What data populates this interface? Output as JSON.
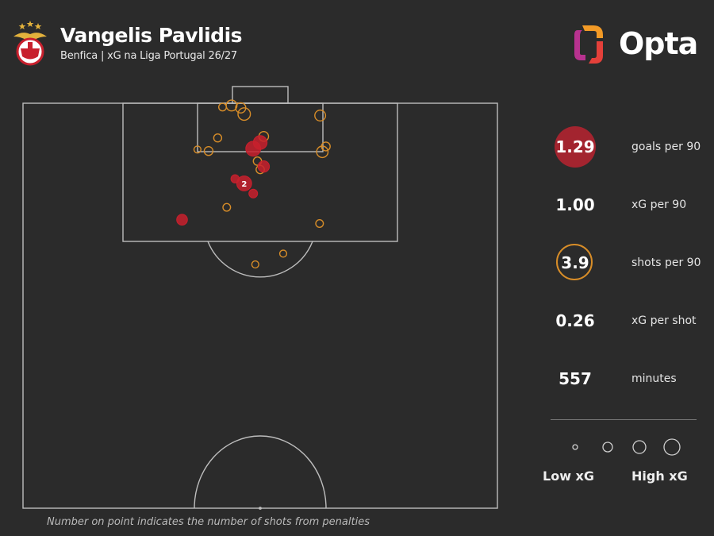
{
  "header": {
    "player_name": "Vangelis Pavlidis",
    "subtitle": "Benfica | xG na Liga Portugal 26/27",
    "brand": "Opta",
    "crest_icon": "benfica-eagle-crest-icon"
  },
  "colors": {
    "background": "#2b2b2b",
    "pitch_lines": "#bdbdbd",
    "goal_red": "#c8202d",
    "miss_orange": "#d88d28",
    "opta_orange": "#f29a26",
    "opta_magenta": "#b7328f",
    "opta_red": "#e4403a"
  },
  "stats": [
    {
      "value": "1.29",
      "label": "goals per 90",
      "badge": "goals"
    },
    {
      "value": "1.00",
      "label": "xG per 90",
      "badge": "none"
    },
    {
      "value": "3.9",
      "label": "shots per 90",
      "badge": "shots"
    },
    {
      "value": "0.26",
      "label": "xG per shot",
      "badge": "none"
    },
    {
      "value": "557",
      "label": "minutes",
      "badge": "none"
    }
  ],
  "legend": {
    "low": "Low xG",
    "high": "High xG",
    "circle_xg_levels": [
      0.05,
      0.1,
      0.2,
      0.35
    ]
  },
  "footnote": "Number on point indicates the number of shots from penalties",
  "chart_data": {
    "type": "scatter",
    "view": "half-pitch shot map, attacking upward",
    "x_axis": "pitch width",
    "y_axis": "pitch length",
    "xlim": [
      0,
      68
    ],
    "ylim": [
      52.5,
      105
    ],
    "encoding": {
      "size": "xG",
      "filled_red": "goal",
      "orange_ring": "no goal",
      "label": "shots from penalties"
    },
    "shots": [
      {
        "x": 28.6,
        "y": 104.5,
        "xg": 0.03,
        "goal": false
      },
      {
        "x": 29.9,
        "y": 104.7,
        "xg": 0.1,
        "goal": false
      },
      {
        "x": 31.2,
        "y": 104.4,
        "xg": 0.08,
        "goal": false
      },
      {
        "x": 31.7,
        "y": 103.6,
        "xg": 0.15,
        "goal": false
      },
      {
        "x": 42.6,
        "y": 103.4,
        "xg": 0.1,
        "goal": false
      },
      {
        "x": 27.9,
        "y": 100.5,
        "xg": 0.035,
        "goal": false
      },
      {
        "x": 25.0,
        "y": 99.0,
        "xg": 0.02,
        "goal": false
      },
      {
        "x": 26.6,
        "y": 98.8,
        "xg": 0.05,
        "goal": false
      },
      {
        "x": 43.4,
        "y": 99.4,
        "xg": 0.05,
        "goal": false
      },
      {
        "x": 42.9,
        "y": 98.7,
        "xg": 0.12,
        "goal": false
      },
      {
        "x": 34.5,
        "y": 100.7,
        "xg": 0.07,
        "goal": false
      },
      {
        "x": 34.0,
        "y": 99.9,
        "xg": 0.2,
        "goal": true
      },
      {
        "x": 33.0,
        "y": 99.1,
        "xg": 0.25,
        "goal": true
      },
      {
        "x": 33.6,
        "y": 97.5,
        "xg": 0.04,
        "goal": false
      },
      {
        "x": 34.5,
        "y": 96.8,
        "xg": 0.12,
        "goal": true
      },
      {
        "x": 34.0,
        "y": 96.4,
        "xg": 0.04,
        "goal": false
      },
      {
        "x": 30.4,
        "y": 95.2,
        "xg": 0.04,
        "goal": true
      },
      {
        "x": 31.7,
        "y": 94.6,
        "xg": 0.25,
        "goal": true,
        "penalties": "2"
      },
      {
        "x": 33.0,
        "y": 93.3,
        "xg": 0.05,
        "goal": true
      },
      {
        "x": 29.2,
        "y": 91.5,
        "xg": 0.03,
        "goal": false
      },
      {
        "x": 22.8,
        "y": 89.9,
        "xg": 0.1,
        "goal": true
      },
      {
        "x": 42.5,
        "y": 89.4,
        "xg": 0.03,
        "goal": false
      },
      {
        "x": 37.3,
        "y": 85.5,
        "xg": 0.02,
        "goal": false
      },
      {
        "x": 33.3,
        "y": 84.1,
        "xg": 0.02,
        "goal": false
      }
    ]
  }
}
